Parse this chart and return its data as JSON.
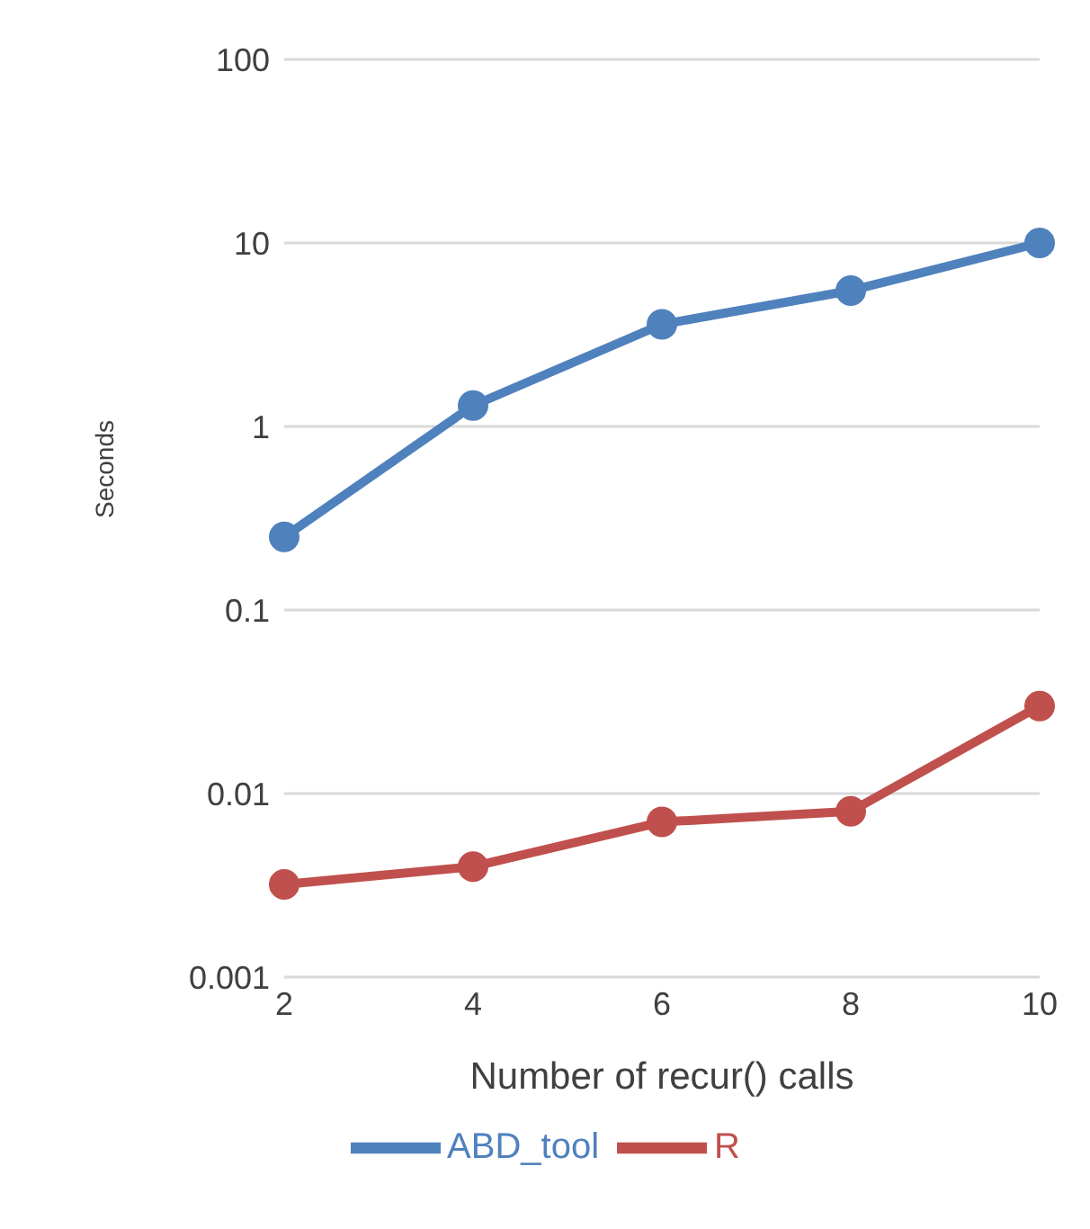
{
  "chart_data": {
    "type": "line",
    "xlabel": "Number of recur() calls",
    "ylabel": "Seconds",
    "categories": [
      "2",
      "4",
      "6",
      "8",
      "10"
    ],
    "series": [
      {
        "name": "ABD_tool",
        "color": "#4f81bd",
        "values": [
          0.25,
          1.3,
          3.6,
          5.5,
          10
        ]
      },
      {
        "name": "R",
        "color": "#c0504d",
        "values": [
          0.0032,
          0.004,
          0.007,
          0.008,
          0.03
        ]
      }
    ],
    "log": "y",
    "ylim": [
      0.001,
      100
    ],
    "yticks": [
      0.001,
      0.01,
      0.1,
      1,
      10,
      100
    ],
    "grid": "y",
    "legend": "bottom",
    "marker": "circle",
    "line_style": "solid"
  }
}
